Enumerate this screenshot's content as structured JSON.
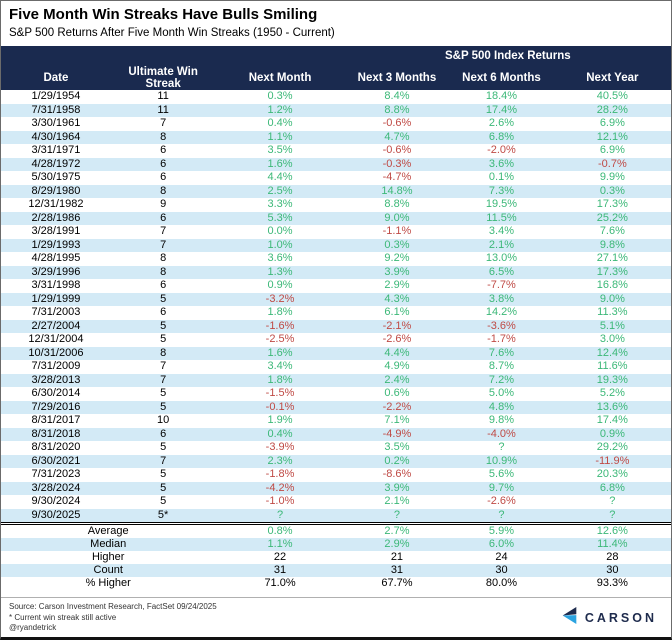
{
  "chart_data": {
    "type": "table",
    "title": "Five Month Win Streaks Have Bulls Smiling",
    "subtitle": "S&P 500 Returns After Five Month Win Streaks (1950 - Current)",
    "group_header": "S&P 500 Index Returns",
    "columns": [
      "Date",
      "Ultimate Win Streak",
      "Next Month",
      "Next 3 Months",
      "Next 6 Months",
      "Next Year"
    ],
    "rows": [
      [
        "1/29/1954",
        "11",
        "0.3%",
        "8.4%",
        "18.4%",
        "40.5%"
      ],
      [
        "7/31/1958",
        "11",
        "1.2%",
        "8.8%",
        "17.4%",
        "28.2%"
      ],
      [
        "3/30/1961",
        "7",
        "0.4%",
        "-0.6%",
        "2.6%",
        "6.9%"
      ],
      [
        "4/30/1964",
        "8",
        "1.1%",
        "4.7%",
        "6.8%",
        "12.1%"
      ],
      [
        "3/31/1971",
        "6",
        "3.5%",
        "-0.6%",
        "-2.0%",
        "6.9%"
      ],
      [
        "4/28/1972",
        "6",
        "1.6%",
        "-0.3%",
        "3.6%",
        "-0.7%"
      ],
      [
        "5/30/1975",
        "6",
        "4.4%",
        "-4.7%",
        "0.1%",
        "9.9%"
      ],
      [
        "8/29/1980",
        "8",
        "2.5%",
        "14.8%",
        "7.3%",
        "0.3%"
      ],
      [
        "12/31/1982",
        "9",
        "3.3%",
        "8.8%",
        "19.5%",
        "17.3%"
      ],
      [
        "2/28/1986",
        "6",
        "5.3%",
        "9.0%",
        "11.5%",
        "25.2%"
      ],
      [
        "3/28/1991",
        "7",
        "0.0%",
        "-1.1%",
        "3.4%",
        "7.6%"
      ],
      [
        "1/29/1993",
        "7",
        "1.0%",
        "0.3%",
        "2.1%",
        "9.8%"
      ],
      [
        "4/28/1995",
        "8",
        "3.6%",
        "9.2%",
        "13.0%",
        "27.1%"
      ],
      [
        "3/29/1996",
        "8",
        "1.3%",
        "3.9%",
        "6.5%",
        "17.3%"
      ],
      [
        "3/31/1998",
        "6",
        "0.9%",
        "2.9%",
        "-7.7%",
        "16.8%"
      ],
      [
        "1/29/1999",
        "5",
        "-3.2%",
        "4.3%",
        "3.8%",
        "9.0%"
      ],
      [
        "7/31/2003",
        "6",
        "1.8%",
        "6.1%",
        "14.2%",
        "11.3%"
      ],
      [
        "2/27/2004",
        "5",
        "-1.6%",
        "-2.1%",
        "-3.6%",
        "5.1%"
      ],
      [
        "12/31/2004",
        "5",
        "-2.5%",
        "-2.6%",
        "-1.7%",
        "3.0%"
      ],
      [
        "10/31/2006",
        "8",
        "1.6%",
        "4.4%",
        "7.6%",
        "12.4%"
      ],
      [
        "7/31/2009",
        "7",
        "3.4%",
        "4.9%",
        "8.7%",
        "11.6%"
      ],
      [
        "3/28/2013",
        "7",
        "1.8%",
        "2.4%",
        "7.2%",
        "19.3%"
      ],
      [
        "6/30/2014",
        "5",
        "-1.5%",
        "0.6%",
        "5.0%",
        "5.2%"
      ],
      [
        "7/29/2016",
        "5",
        "-0.1%",
        "-2.2%",
        "4.8%",
        "13.6%"
      ],
      [
        "8/31/2017",
        "10",
        "1.9%",
        "7.1%",
        "9.8%",
        "17.4%"
      ],
      [
        "8/31/2018",
        "6",
        "0.4%",
        "-4.9%",
        "-4.0%",
        "0.9%"
      ],
      [
        "8/31/2020",
        "5",
        "-3.9%",
        "3.5%",
        "?",
        "29.2%"
      ],
      [
        "6/30/2021",
        "7",
        "2.3%",
        "0.2%",
        "10.9%",
        "-11.9%"
      ],
      [
        "7/31/2023",
        "5",
        "-1.8%",
        "-8.6%",
        "5.6%",
        "20.3%"
      ],
      [
        "3/28/2024",
        "5",
        "-4.2%",
        "3.9%",
        "9.7%",
        "6.8%"
      ],
      [
        "9/30/2024",
        "5",
        "-1.0%",
        "2.1%",
        "-2.6%",
        "?"
      ],
      [
        "9/30/2025",
        "5*",
        "?",
        "?",
        "?",
        "?"
      ]
    ],
    "summary_rows": [
      {
        "label": "Average",
        "values": [
          "0.8%",
          "2.7%",
          "5.9%",
          "12.6%"
        ],
        "value_color": "colored"
      },
      {
        "label": "Median",
        "values": [
          "1.1%",
          "2.9%",
          "6.0%",
          "11.4%"
        ],
        "value_color": "colored"
      },
      {
        "label": "Higher",
        "values": [
          "22",
          "21",
          "24",
          "28"
        ],
        "value_color": "black"
      },
      {
        "label": "Count",
        "values": [
          "31",
          "31",
          "30",
          "30"
        ],
        "value_color": "black"
      },
      {
        "label": "% Higher",
        "values": [
          "71.0%",
          "67.7%",
          "80.0%",
          "93.3%"
        ],
        "value_color": "black"
      }
    ]
  },
  "footer": {
    "source": "Source: Carson Investment Research, FactSet 09/24/2025",
    "note": "* Current win streak still active",
    "handle": "@ryandetrick",
    "logo_text": "CARSON"
  },
  "colors": {
    "header_bg": "#1a2a4f",
    "row_stripe": "#d3eaf6",
    "positive": "#3cb878",
    "negative": "#bf4a45",
    "logo_navy": "#1e2b4d",
    "logo_blue": "#2ba3e0"
  }
}
